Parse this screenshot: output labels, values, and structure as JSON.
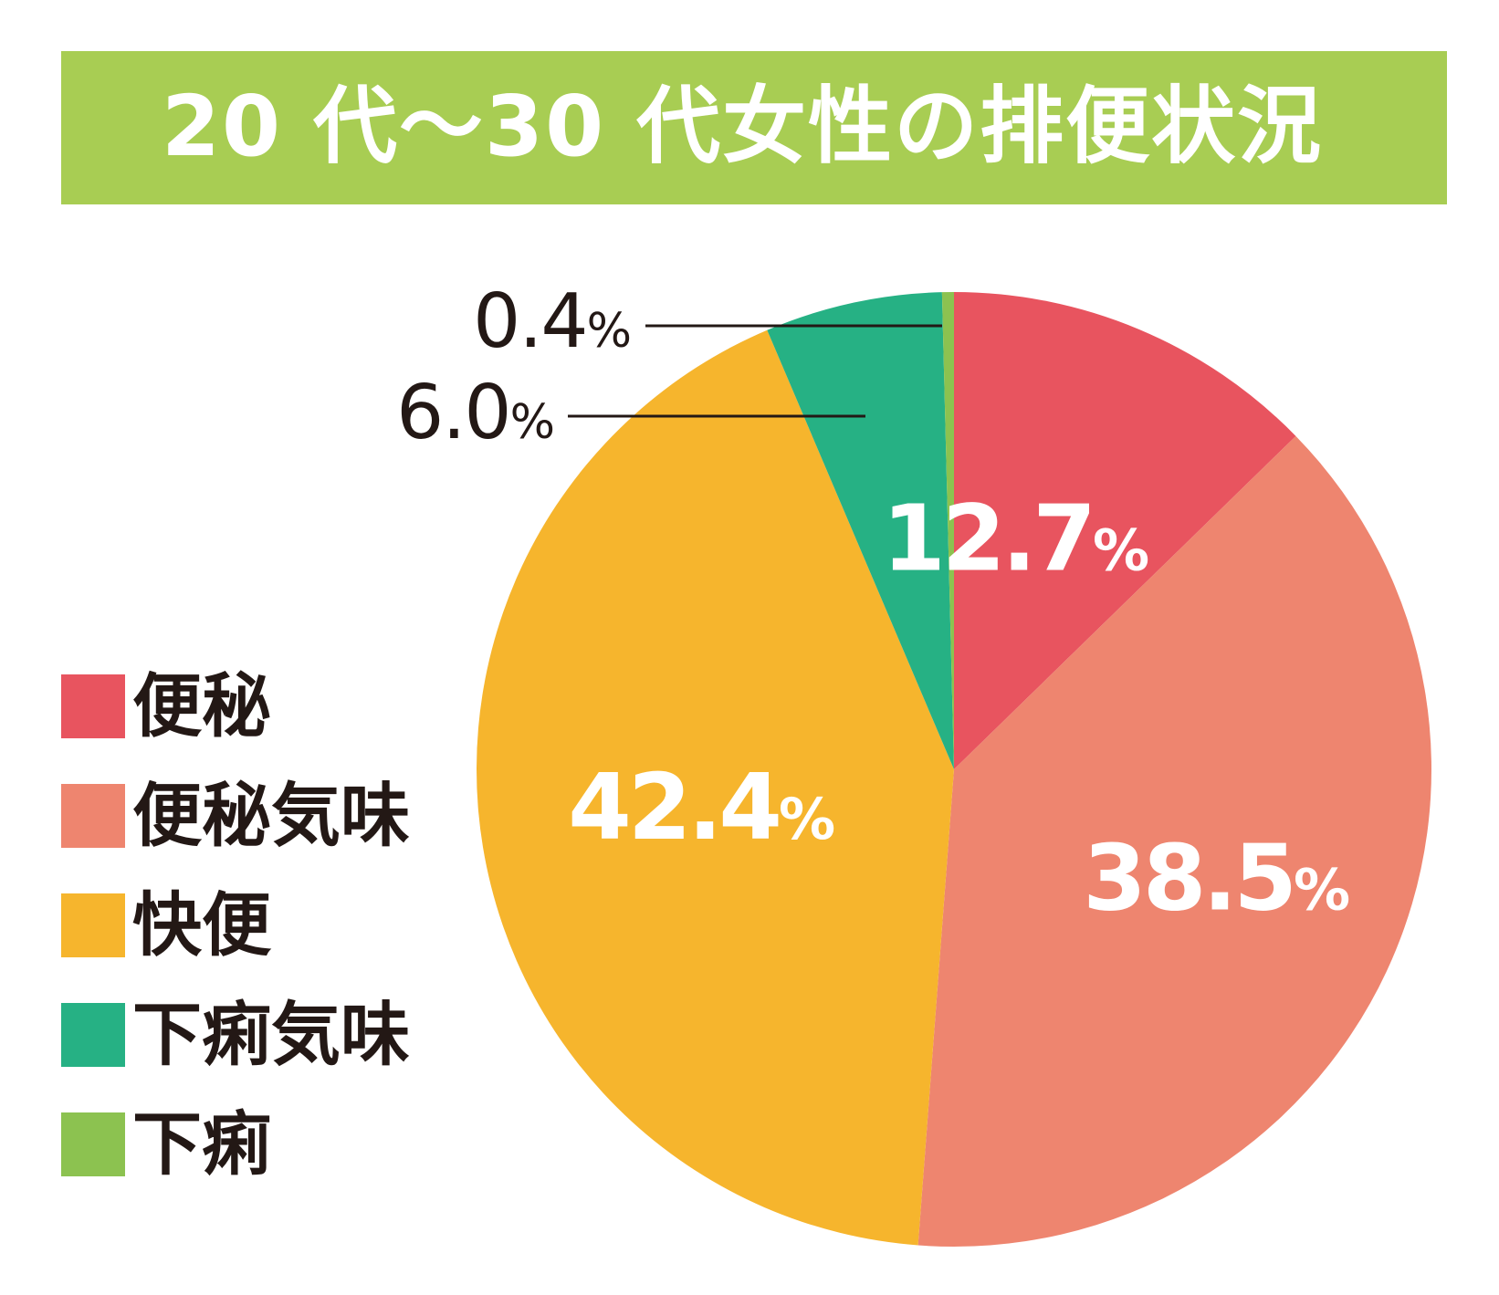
{
  "chart_data": {
    "type": "pie",
    "title": "20 代〜30 代女性の排便状況",
    "slices": [
      {
        "name": "便秘",
        "value": 12.7,
        "label": "12.7%",
        "color": "#e8545f"
      },
      {
        "name": "便秘気味",
        "value": 38.5,
        "label": "38.5%",
        "color": "#ee856f"
      },
      {
        "name": "快便",
        "value": 42.4,
        "label": "42.4%",
        "color": "#f6b52d"
      },
      {
        "name": "下痢気味",
        "value": 6.0,
        "label": "6.0%",
        "color": "#26b184"
      },
      {
        "name": "下痢",
        "value": 0.4,
        "label": "0.4%",
        "color": "#8cc250"
      }
    ],
    "legend_position": "left",
    "start_angle": "top, clockwise"
  },
  "colors": {
    "title_banner": "#a8cd53",
    "title_text": "#ffffff",
    "legend_text": "#231815",
    "callout_text": "#231815",
    "inside_label_text": "#ffffff"
  }
}
